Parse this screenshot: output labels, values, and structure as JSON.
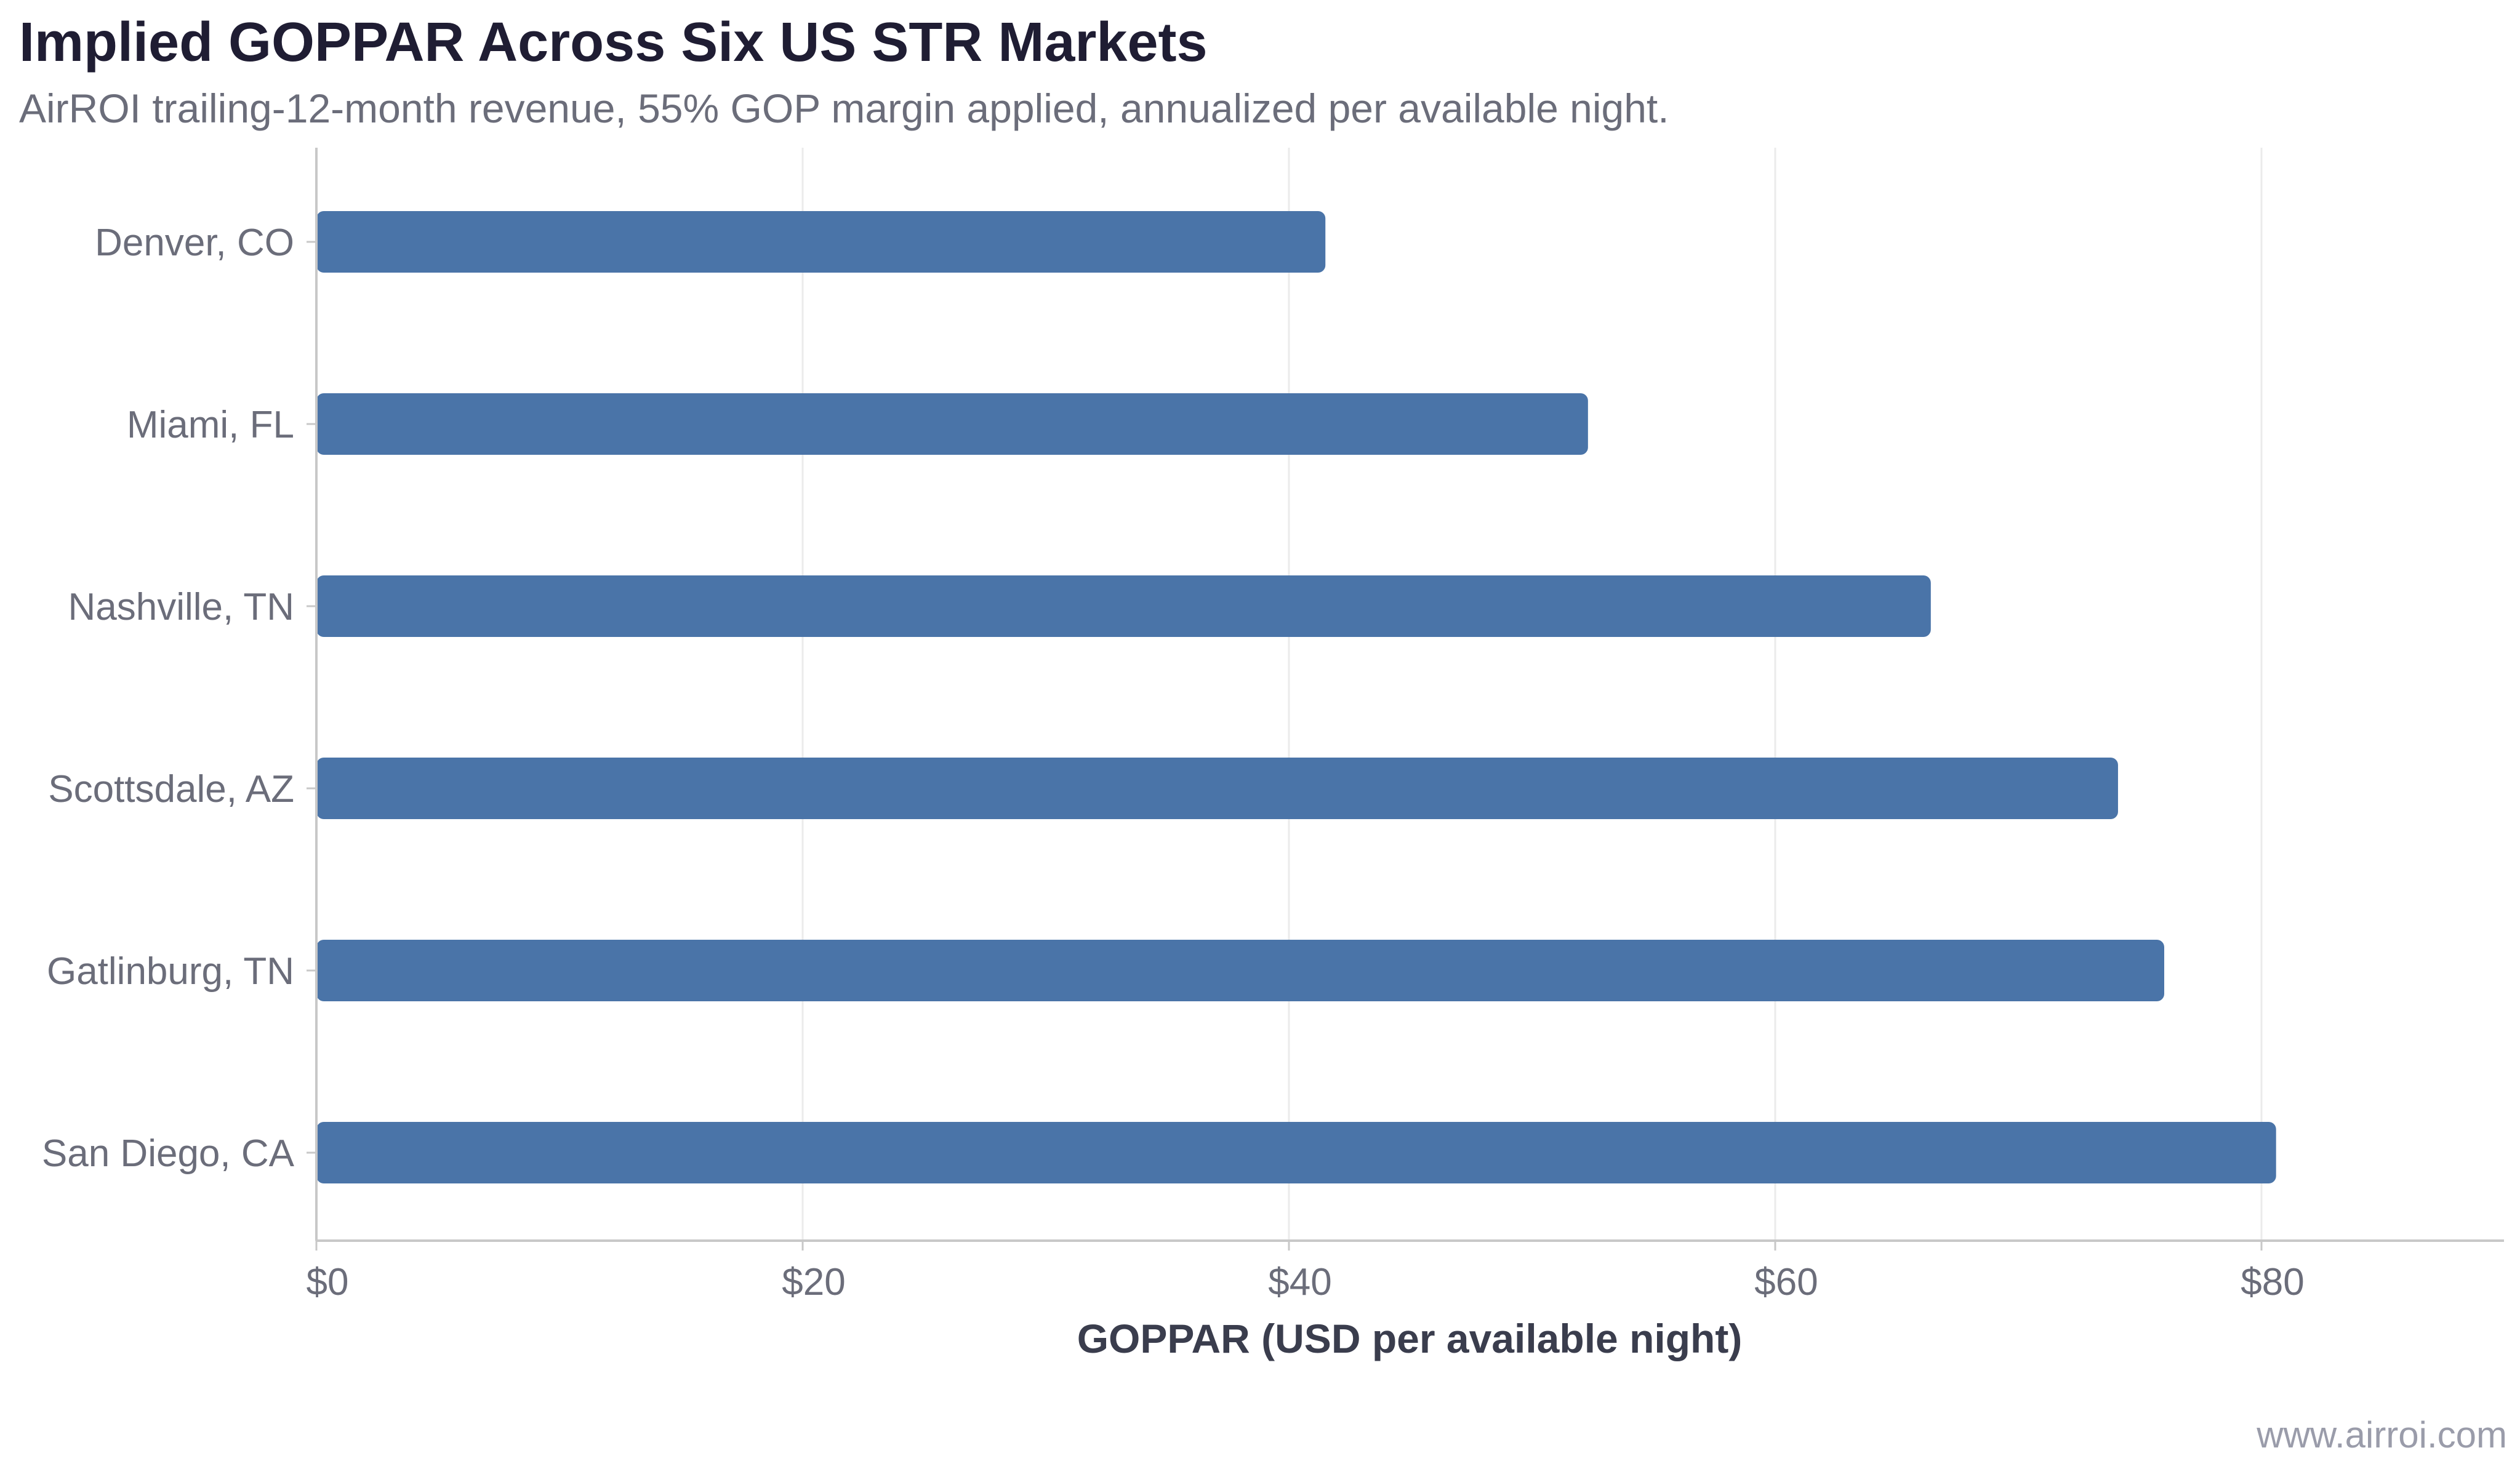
{
  "header": {
    "title": "Implied GOPPAR Across Six US STR Markets",
    "subtitle": "AirROI trailing-12-month revenue, 55% GOP margin applied, annualized per available night."
  },
  "footer": {
    "source": "www.airroi.com"
  },
  "colors": {
    "bar": "#4a74a8",
    "grid": "#ebebeb",
    "axis": "#c8c8c8",
    "tick_label": "#6b6d7a",
    "axis_title": "#3a3d4d"
  },
  "chart_data": {
    "type": "bar",
    "orientation": "horizontal",
    "categories": [
      "Denver, CO",
      "Miami, FL",
      "Nashville, TN",
      "Scottsdale, AZ",
      "Gatlinburg, TN",
      "San Diego, CA"
    ],
    "values": [
      41.5,
      52.3,
      66.4,
      74.1,
      76.0,
      80.6
    ],
    "xlabel": "GOPPAR (USD per available night)",
    "ylabel": "",
    "xlim": [
      0,
      90
    ],
    "x_ticks": [
      0,
      20,
      40,
      60,
      80
    ],
    "x_tick_labels": [
      "$0",
      "$20",
      "$40",
      "$60",
      "$80"
    ],
    "grid": "vertical",
    "legend": "none"
  }
}
